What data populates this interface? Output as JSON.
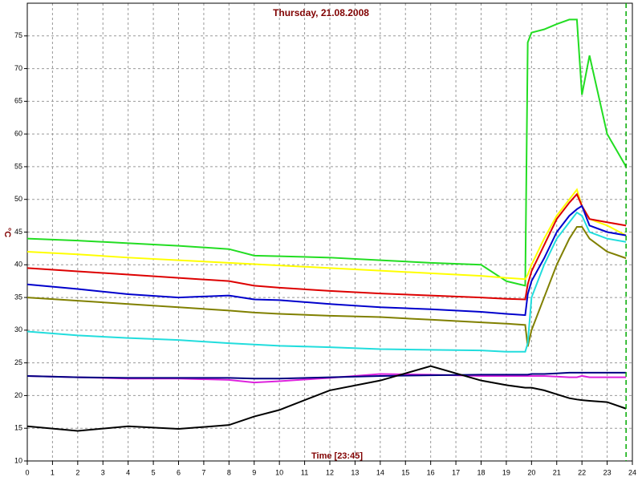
{
  "chart_data": {
    "type": "line",
    "title": "Thursday, 21.08.2008",
    "ylabel": "°C",
    "xlabel": "Time [23:45]",
    "x": [
      0,
      2,
      4,
      6,
      8,
      9,
      10,
      12,
      14,
      16,
      18,
      19,
      19.75,
      19.85,
      20,
      20.5,
      21,
      21.5,
      21.8,
      22,
      22.3,
      23,
      23.75
    ],
    "xlim": [
      0,
      24
    ],
    "xticks": [
      0,
      1,
      2,
      3,
      4,
      5,
      6,
      7,
      8,
      9,
      10,
      11,
      12,
      13,
      14,
      15,
      16,
      17,
      18,
      19,
      20,
      21,
      22,
      23,
      24
    ],
    "ylim": [
      10,
      80
    ],
    "yticks": [
      10,
      15,
      20,
      25,
      30,
      35,
      40,
      45,
      50,
      55,
      60,
      65,
      70,
      75
    ],
    "grid": true,
    "marker_x": 23.75,
    "marker_color": "#00aa00",
    "series": [
      {
        "color": "#22dd22",
        "values": [
          44,
          43.7,
          43.3,
          42.9,
          42.4,
          41.4,
          41.3,
          41.1,
          40.7,
          40.3,
          40,
          37.5,
          36.8,
          74,
          75.5,
          76,
          76.8,
          77.5,
          77.5,
          66,
          72,
          60,
          55
        ]
      },
      {
        "color": "#ffff00",
        "values": [
          42,
          41.6,
          41.1,
          40.7,
          40.3,
          40.1,
          39.9,
          39.5,
          39.1,
          38.7,
          38.3,
          38,
          37.8,
          38.5,
          40,
          44,
          47.5,
          50,
          51.5,
          49,
          47,
          46,
          44.5
        ]
      },
      {
        "color": "#dd0000",
        "values": [
          39.5,
          39,
          38.5,
          38,
          37.5,
          36.8,
          36.5,
          36,
          35.6,
          35.3,
          35,
          34.8,
          34.7,
          37,
          39,
          43,
          47,
          49.5,
          50.8,
          49,
          47,
          46.5,
          46
        ]
      },
      {
        "color": "#0000cc",
        "values": [
          37,
          36.3,
          35.5,
          35,
          35.3,
          34.7,
          34.6,
          34,
          33.5,
          33.2,
          32.8,
          32.5,
          32.3,
          35.5,
          37.5,
          41,
          45,
          47.5,
          48.5,
          49,
          46,
          45,
          44.5
        ]
      },
      {
        "color": "#808000",
        "values": [
          35,
          34.5,
          34,
          33.5,
          33,
          32.7,
          32.5,
          32.2,
          32,
          31.6,
          31.2,
          31,
          30.8,
          27.5,
          30,
          35,
          40,
          44,
          45.8,
          45.8,
          44,
          42,
          41
        ]
      },
      {
        "color": "#22dddd",
        "values": [
          29.8,
          29.2,
          28.8,
          28.5,
          28,
          27.8,
          27.6,
          27.4,
          27.1,
          27,
          26.9,
          26.7,
          26.7,
          28,
          35,
          40,
          44,
          46.5,
          48,
          47.5,
          45,
          44,
          43.5
        ]
      },
      {
        "color": "#dd22dd",
        "values": [
          23,
          22.8,
          22.6,
          22.6,
          22.4,
          22,
          22.2,
          22.7,
          23.3,
          23.2,
          23,
          23,
          23,
          23,
          23,
          23,
          22.9,
          22.8,
          22.8,
          23,
          22.8,
          22.8,
          22.8
        ]
      },
      {
        "color": "#000080",
        "values": [
          23,
          22.8,
          22.7,
          22.7,
          22.7,
          22.6,
          22.6,
          22.8,
          23,
          23.1,
          23.2,
          23.2,
          23.2,
          23.2,
          23.3,
          23.3,
          23.4,
          23.5,
          23.5,
          23.5,
          23.5,
          23.5,
          23.5
        ]
      },
      {
        "color": "#000000",
        "values": [
          15.3,
          14.6,
          15.3,
          14.9,
          15.5,
          16.8,
          17.8,
          20.8,
          22.3,
          24.5,
          22.3,
          21.6,
          21.2,
          21.2,
          21.2,
          20.8,
          20.2,
          19.6,
          19.4,
          19.3,
          19.2,
          19,
          18
        ]
      }
    ]
  }
}
